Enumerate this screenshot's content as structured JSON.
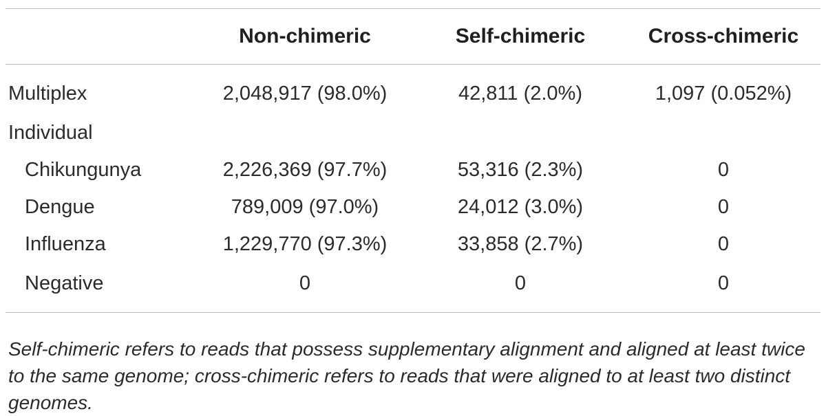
{
  "table": {
    "headers": [
      "",
      "Non-chimeric",
      "Self-chimeric",
      "Cross-chimeric"
    ],
    "rows": [
      {
        "label": "Multiplex",
        "indent": false,
        "non_chimeric": "2,048,917 (98.0%)",
        "self_chimeric": "42,811 (2.0%)",
        "cross_chimeric": "1,097 (0.052%)"
      },
      {
        "label": "Individual",
        "indent": false,
        "non_chimeric": "",
        "self_chimeric": "",
        "cross_chimeric": ""
      },
      {
        "label": "Chikungunya",
        "indent": true,
        "non_chimeric": "2,226,369 (97.7%)",
        "self_chimeric": "53,316 (2.3%)",
        "cross_chimeric": "0"
      },
      {
        "label": "Dengue",
        "indent": true,
        "non_chimeric": "789,009 (97.0%)",
        "self_chimeric": "24,012 (3.0%)",
        "cross_chimeric": "0"
      },
      {
        "label": "Influenza",
        "indent": true,
        "non_chimeric": "1,229,770 (97.3%)",
        "self_chimeric": "33,858 (2.7%)",
        "cross_chimeric": "0"
      },
      {
        "label": "Negative",
        "indent": true,
        "non_chimeric": "0",
        "self_chimeric": "0",
        "cross_chimeric": "0"
      }
    ]
  },
  "footnote": "Self-chimeric refers to reads that possess supplementary alignment and aligned at least twice to the same genome; cross-chimeric refers to reads that were aligned to at least two distinct genomes."
}
